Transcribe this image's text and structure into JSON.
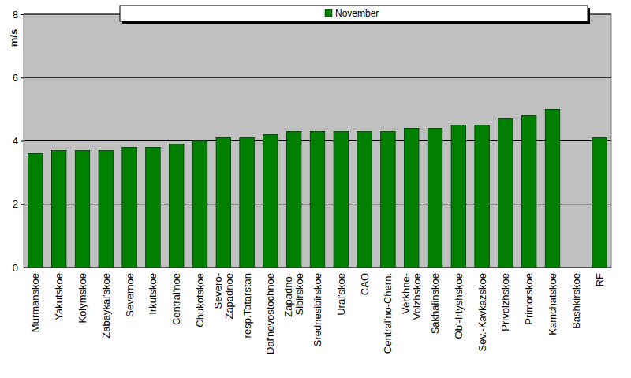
{
  "chart_data": {
    "type": "bar",
    "y_label": "m/s",
    "categories": [
      "Murmanskoe",
      "Yakutskoe",
      "Kolymskoe",
      "Zabaykal'skoe",
      "Severnoe",
      "Irkutskoe",
      "Central'noe",
      "Chukotskoe",
      "Severo-\nZapadnoe",
      "resp.Tatarstan",
      "Dal'nevostochnoe",
      "Zapadno-\nSibirskoe",
      "Srednesibirskoe",
      "Ural'skoe",
      "CAO",
      "Central'no-Chern.",
      "Verkhne-\nVolzhskoe",
      "Sakhalinskoe",
      "Ob'-Irtyshskoe",
      "Sev.-Kavkazskoe",
      "Privolzhskoe",
      "Primorskoe",
      "Kamchatskoe",
      "Bashkirskoe",
      "RF"
    ],
    "series": [
      {
        "name": "November",
        "color": "#008000",
        "values": [
          3.6,
          3.7,
          3.7,
          3.7,
          3.8,
          3.8,
          3.9,
          4.0,
          4.1,
          4.1,
          4.2,
          4.3,
          4.3,
          4.3,
          4.3,
          4.3,
          4.4,
          4.4,
          4.5,
          4.5,
          4.7,
          4.8,
          5.0,
          null,
          4.1
        ]
      }
    ],
    "ylim": [
      0,
      8
    ],
    "yticks": [
      0,
      2,
      4,
      6,
      8
    ],
    "grid": true,
    "legend": "top"
  }
}
